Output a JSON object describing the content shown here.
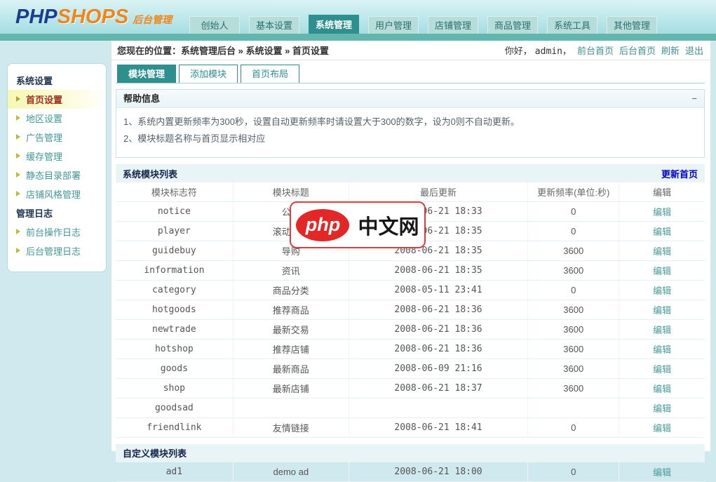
{
  "brand": {
    "php": "PHP",
    "shops": "SHOPS",
    "suffix": "后台管理"
  },
  "nav": {
    "tabs": [
      {
        "label": "创始人",
        "active": false
      },
      {
        "label": "基本设置",
        "active": false
      },
      {
        "label": "系统管理",
        "active": true
      },
      {
        "label": "用户管理",
        "active": false
      },
      {
        "label": "店铺管理",
        "active": false
      },
      {
        "label": "商品管理",
        "active": false
      },
      {
        "label": "系统工具",
        "active": false
      },
      {
        "label": "其他管理",
        "active": false
      }
    ]
  },
  "breadcrumb": {
    "text": "您现在的位置：系统管理后台 » 系统设置 » 首页设置"
  },
  "userbar": {
    "greeting": "你好，",
    "username": "admin，",
    "links": [
      "前台首页",
      "后台首页",
      "刷新",
      "退出"
    ]
  },
  "sidebar": {
    "sections": [
      {
        "title": "系统设置",
        "items": [
          {
            "label": "首页设置",
            "active": true
          },
          {
            "label": "地区设置",
            "active": false
          },
          {
            "label": "广告管理",
            "active": false
          },
          {
            "label": "缓存管理",
            "active": false
          },
          {
            "label": "静态目录部署",
            "active": false
          },
          {
            "label": "店铺风格管理",
            "active": false
          }
        ]
      },
      {
        "title": "管理日志",
        "items": [
          {
            "label": "前台操作日志",
            "active": false
          },
          {
            "label": "后台管理日志",
            "active": false
          }
        ]
      }
    ]
  },
  "content": {
    "tabs": [
      {
        "label": "模块管理",
        "active": true
      },
      {
        "label": "添加模块",
        "active": false
      },
      {
        "label": "首页布局",
        "active": false
      }
    ],
    "help": {
      "title": "帮助信息",
      "collapse": "−",
      "lines": [
        "1、系统内置更新频率为300秒，设置自动更新频率时请设置大于300的数字，设为0则不自动更新。",
        "2、模块标题名称与首页显示相对应"
      ]
    },
    "system_modules": {
      "title": "系统模块列表",
      "action": "更新首页",
      "columns": [
        "模块标志符",
        "模块标题",
        "最后更新",
        "更新频率(单位:秒)",
        "编辑"
      ],
      "edit_label": "编辑",
      "rows": [
        {
          "id": "notice",
          "title": "公告",
          "updated": "2008-06-21 18:33",
          "freq": "0"
        },
        {
          "id": "player",
          "title": "滚动播放",
          "updated": "2008-06-21 18:35",
          "freq": "0"
        },
        {
          "id": "guidebuy",
          "title": "导购",
          "updated": "2008-06-21 18:35",
          "freq": "3600"
        },
        {
          "id": "information",
          "title": "资讯",
          "updated": "2008-06-21 18:35",
          "freq": "3600"
        },
        {
          "id": "category",
          "title": "商品分类",
          "updated": "2008-05-11 23:41",
          "freq": "0"
        },
        {
          "id": "hotgoods",
          "title": "推荐商品",
          "updated": "2008-06-21 18:36",
          "freq": "3600"
        },
        {
          "id": "newtrade",
          "title": "最新交易",
          "updated": "2008-06-21 18:36",
          "freq": "3600"
        },
        {
          "id": "hotshop",
          "title": "推荐店铺",
          "updated": "2008-06-21 18:36",
          "freq": "3600"
        },
        {
          "id": "goods",
          "title": "最新商品",
          "updated": "2008-06-09 21:16",
          "freq": "3600"
        },
        {
          "id": "shop",
          "title": "最新店铺",
          "updated": "2008-06-21 18:37",
          "freq": "3600"
        },
        {
          "id": "goodsad",
          "title": "",
          "updated": "",
          "freq": ""
        },
        {
          "id": "friendlink",
          "title": "友情链接",
          "updated": "2008-06-21 18:41",
          "freq": "0"
        }
      ]
    },
    "custom_modules": {
      "title": "自定义模块列表",
      "edit_label": "编辑",
      "rows": [
        {
          "id": "ad1",
          "title": "demo ad",
          "updated": "2008-06-21 18:00",
          "freq": "0"
        }
      ]
    }
  },
  "watermark": {
    "badge": "php",
    "text": "中文网"
  },
  "colors": {
    "teal_accent": "#2e8f8f",
    "teal_strip": "#63b6ae",
    "link_teal": "#3f8f8f",
    "action_blue": "#0000c6",
    "active_item_red": "#9e2f1f",
    "watermark_red": "#e32626",
    "page_bg": "#cfe9ee"
  }
}
